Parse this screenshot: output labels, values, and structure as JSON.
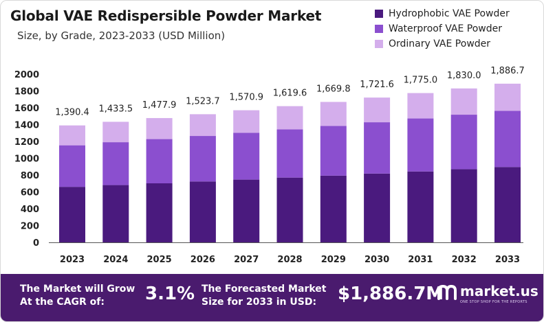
{
  "title": "Global VAE Redispersible Powder Market",
  "subtitle": "Size, by Grade, 2023-2033 (USD Million)",
  "colors": {
    "hydrophobic": "#4a1a7e",
    "waterproof": "#8b4fcf",
    "ordinary": "#d4aeec",
    "footer_bg": "#4a1b6e"
  },
  "chart_data": {
    "type": "bar",
    "stacked": true,
    "title": "Global VAE Redispersible Powder Market",
    "subtitle": "Size, by Grade, 2023-2033 (USD Million)",
    "categories": [
      "2023",
      "2024",
      "2025",
      "2026",
      "2027",
      "2028",
      "2029",
      "2030",
      "2031",
      "2032",
      "2033"
    ],
    "series": [
      {
        "name": "Hydrophobic VAE Powder",
        "values": [
          660,
          681,
          702,
          724,
          746,
          770,
          793,
          818,
          843,
          870,
          896
        ]
      },
      {
        "name": "Waterproof VAE Powder",
        "values": [
          494,
          510,
          526,
          541,
          557,
          574,
          592,
          610,
          630,
          648,
          668
        ]
      },
      {
        "name": "Ordinary VAE Powder",
        "values": [
          236.4,
          242.5,
          249.9,
          258.7,
          267.9,
          275.6,
          284.8,
          293.6,
          302.0,
          312.0,
          322.7
        ]
      }
    ],
    "totals": [
      "1,390.4",
      "1,433.5",
      "1,477.9",
      "1,523.7",
      "1,570.9",
      "1,619.6",
      "1,669.8",
      "1,721.6",
      "1,775.0",
      "1,830.0",
      "1,886.7"
    ],
    "y_ticks": [
      "0",
      "200",
      "400",
      "600",
      "800",
      "1000",
      "1200",
      "1400",
      "1600",
      "1800",
      "2000"
    ],
    "ylim": [
      0,
      2000
    ],
    "xlabel": "",
    "ylabel": "",
    "grid": false,
    "legend_position": "top-right"
  },
  "footer": {
    "cagr_label_line1": "The Market will Grow",
    "cagr_label_line2": "At the CAGR of:",
    "cagr_value": "3.1%",
    "forecast_label_line1": "The Forecasted Market",
    "forecast_label_line2": "Size for 2033 in USD:",
    "forecast_value": "$1,886.7M",
    "brand": "market.us",
    "brand_tagline": "ONE STOP SHOP FOR THE REPORTS"
  }
}
